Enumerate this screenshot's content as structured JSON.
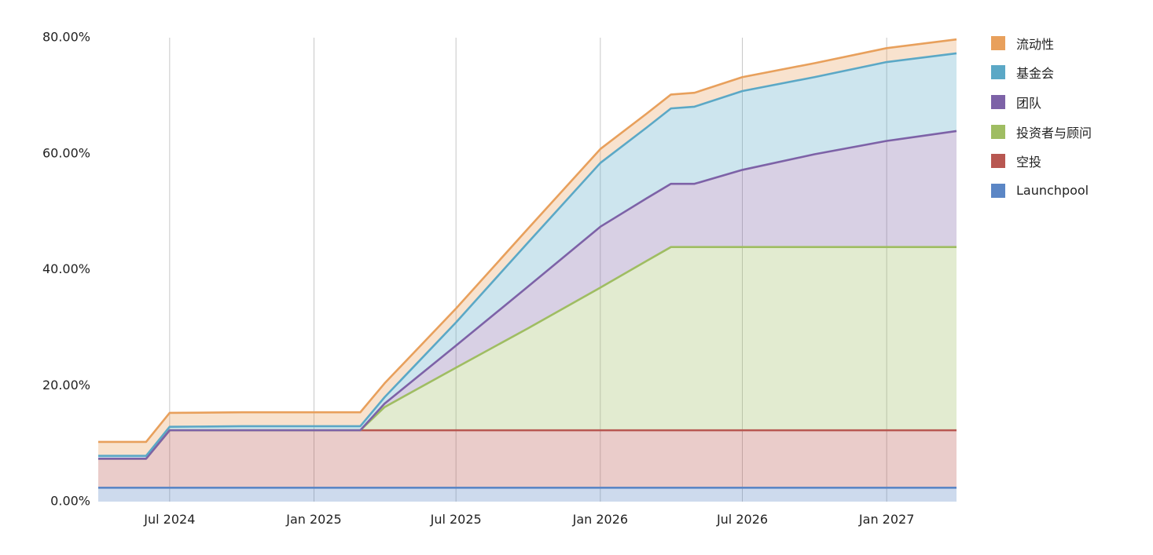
{
  "chart_data": {
    "type": "area",
    "stacked": true,
    "x_axis": {
      "type": "date",
      "range": [
        "2024-04-01",
        "2027-03-31"
      ],
      "ticks": [
        "2024-07-01",
        "2025-01-01",
        "2025-07-01",
        "2026-01-01",
        "2026-07-01",
        "2027-01-01"
      ],
      "tick_labels": [
        "Jul 2024",
        "Jan 2025",
        "Jul 2025",
        "Jan 2026",
        "Jul 2026",
        "Jan 2027"
      ]
    },
    "y_axis": {
      "range": [
        0,
        80
      ],
      "ticks": [
        0,
        20,
        40,
        60,
        80
      ],
      "tick_labels": [
        "0.00%",
        "20.00%",
        "40.00%",
        "60.00%",
        "80.00%"
      ]
    },
    "x": [
      "2024-04-01",
      "2024-06-01",
      "2024-07-01",
      "2024-10-01",
      "2025-01-01",
      "2025-03-01",
      "2025-04-01",
      "2025-07-01",
      "2025-10-01",
      "2026-01-01",
      "2026-03-01",
      "2026-04-01",
      "2026-05-01",
      "2026-07-01",
      "2026-10-01",
      "2027-01-01",
      "2027-03-31"
    ],
    "series": [
      {
        "name": "Launchpool",
        "color": "#5b86c5",
        "values": [
          2.4,
          2.4,
          2.4,
          2.4,
          2.4,
          2.4,
          2.4,
          2.4,
          2.4,
          2.4,
          2.4,
          2.4,
          2.4,
          2.4,
          2.4,
          2.4,
          2.4
        ]
      },
      {
        "name": "空投",
        "color": "#b85751",
        "values": [
          5.0,
          5.0,
          9.9,
          9.9,
          9.9,
          9.9,
          9.9,
          9.9,
          9.9,
          9.9,
          9.9,
          9.9,
          9.9,
          9.9,
          9.9,
          9.9,
          9.9
        ]
      },
      {
        "name": "投资者与顾问",
        "color": "#9fbd62",
        "values": [
          0,
          0,
          0,
          0,
          0,
          0,
          4.0,
          10.8,
          17.6,
          24.6,
          29.2,
          31.6,
          31.6,
          31.6,
          31.6,
          31.6,
          31.6
        ]
      },
      {
        "name": "团队",
        "color": "#7d62a7",
        "values": [
          0,
          0,
          0,
          0,
          0,
          0,
          0.6,
          3.8,
          7.2,
          10.5,
          10.8,
          10.9,
          10.9,
          13.3,
          16.0,
          18.3,
          20.0
        ]
      },
      {
        "name": "基金会",
        "color": "#5ba8c6",
        "values": [
          0.5,
          0.5,
          0.6,
          0.7,
          0.7,
          0.7,
          1.1,
          4.0,
          7.6,
          11.0,
          12.2,
          13.0,
          13.3,
          13.6,
          13.3,
          13.6,
          13.4
        ]
      },
      {
        "name": "流动性",
        "color": "#e8a05c",
        "values": [
          2.4,
          2.4,
          2.4,
          2.4,
          2.4,
          2.4,
          2.4,
          2.4,
          2.4,
          2.4,
          2.4,
          2.4,
          2.4,
          2.4,
          2.4,
          2.4,
          2.4
        ]
      }
    ],
    "legend_order": [
      "流动性",
      "基金会",
      "团队",
      "投资者与顾问",
      "空投",
      "Launchpool"
    ],
    "legend_position": "right",
    "grid": {
      "vertical": true,
      "horizontal": false
    }
  }
}
